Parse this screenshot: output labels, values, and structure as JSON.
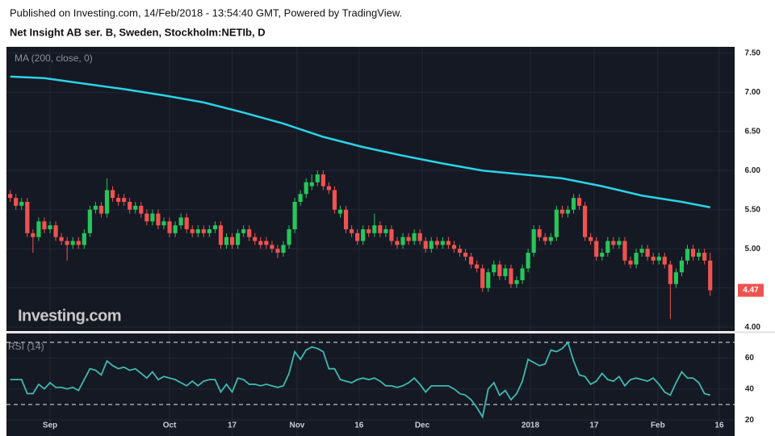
{
  "chart_data": {
    "type": "candlestick",
    "attribution": "Published on Investing.com, 14/Feb/2018 - 13:54:40 GMT, Powered by TradingView.",
    "title": "Net Insight AB ser. B, Sweden, Stockholm:NETIb, D",
    "watermark": "Investing.com",
    "up_color": "#26c65a",
    "down_color": "#ef5350",
    "grid": true,
    "open": [
      5.7,
      5.65,
      5.55,
      5.6,
      5.2,
      5.15,
      5.35,
      5.25,
      5.3,
      5.15,
      5.1,
      5.05,
      5.1,
      5.05,
      5.2,
      5.5,
      5.55,
      5.45,
      5.75,
      5.65,
      5.65,
      5.6,
      5.5,
      5.55,
      5.45,
      5.35,
      5.45,
      5.3,
      5.35,
      5.2,
      5.3,
      5.4,
      5.25,
      5.2,
      5.25,
      5.2,
      5.25,
      5.3,
      5.05,
      5.15,
      5.05,
      5.2,
      5.25,
      5.15,
      5.1,
      5.1,
      5.05,
      5.0,
      4.95,
      5.05,
      5.25,
      5.6,
      5.7,
      5.8,
      5.85,
      5.95,
      5.8,
      5.75,
      5.45,
      5.5,
      5.25,
      5.2,
      5.1,
      5.25,
      5.2,
      5.3,
      5.2,
      5.25,
      5.1,
      5.05,
      5.15,
      5.1,
      5.2,
      5.1,
      5.0,
      5.1,
      5.05,
      5.1,
      5.05,
      5.0,
      4.95,
      4.9,
      4.8,
      4.75,
      4.5,
      4.7,
      4.8,
      4.65,
      4.75,
      4.55,
      4.6,
      4.75,
      4.95,
      5.25,
      5.15,
      5.1,
      5.15,
      5.5,
      5.45,
      5.5,
      5.65,
      5.55,
      5.15,
      5.1,
      4.9,
      4.95,
      5.1,
      5.05,
      5.1,
      4.85,
      4.8,
      4.95,
      5.0,
      4.9,
      4.85,
      4.9,
      4.8,
      4.55,
      4.7,
      4.85,
      5.0,
      4.9,
      4.95,
      4.85
    ],
    "high": [
      5.75,
      5.7,
      5.65,
      5.65,
      5.25,
      5.4,
      5.4,
      5.35,
      5.35,
      5.2,
      5.15,
      5.15,
      5.15,
      5.25,
      5.55,
      5.6,
      5.6,
      5.9,
      5.8,
      5.7,
      5.7,
      5.65,
      5.6,
      5.6,
      5.5,
      5.5,
      5.5,
      5.4,
      5.4,
      5.35,
      5.45,
      5.45,
      5.3,
      5.3,
      5.3,
      5.3,
      5.35,
      5.35,
      5.2,
      5.2,
      5.25,
      5.3,
      5.3,
      5.2,
      5.15,
      5.15,
      5.1,
      5.05,
      5.1,
      5.3,
      5.65,
      5.75,
      5.9,
      5.95,
      6.0,
      6.0,
      5.85,
      5.8,
      5.55,
      5.55,
      5.3,
      5.25,
      5.3,
      5.3,
      5.45,
      5.35,
      5.3,
      5.3,
      5.15,
      5.2,
      5.2,
      5.25,
      5.25,
      5.15,
      5.15,
      5.15,
      5.15,
      5.15,
      5.1,
      5.05,
      5.0,
      4.95,
      4.85,
      4.8,
      4.75,
      4.85,
      4.85,
      4.8,
      4.8,
      4.65,
      4.8,
      5.0,
      5.3,
      5.3,
      5.2,
      5.2,
      5.55,
      5.55,
      5.55,
      5.7,
      5.7,
      5.6,
      5.2,
      5.15,
      5.0,
      5.15,
      5.15,
      5.15,
      5.15,
      4.9,
      5.0,
      5.05,
      5.05,
      4.95,
      4.95,
      4.95,
      4.85,
      4.75,
      4.9,
      5.05,
      5.05,
      5.0,
      5.0,
      4.95
    ],
    "low": [
      5.6,
      5.5,
      5.5,
      5.15,
      4.95,
      5.1,
      5.2,
      5.2,
      5.1,
      5.05,
      4.85,
      5.0,
      5.0,
      5.0,
      5.15,
      5.45,
      5.4,
      5.4,
      5.6,
      5.55,
      5.55,
      5.45,
      5.45,
      5.4,
      5.3,
      5.3,
      5.25,
      5.25,
      5.15,
      5.15,
      5.25,
      5.2,
      5.15,
      5.15,
      5.15,
      5.15,
      5.2,
      5.0,
      5.0,
      5.0,
      5.0,
      5.15,
      5.1,
      5.05,
      5.0,
      5.0,
      4.95,
      4.88,
      4.9,
      5.0,
      5.2,
      5.55,
      5.65,
      5.75,
      5.8,
      5.75,
      5.7,
      5.45,
      5.4,
      5.2,
      5.15,
      5.05,
      5.05,
      5.15,
      5.15,
      5.15,
      5.15,
      5.05,
      5.0,
      5.0,
      5.05,
      5.05,
      5.05,
      4.95,
      4.95,
      5.0,
      5.0,
      5.0,
      4.95,
      4.9,
      4.85,
      4.75,
      4.7,
      4.45,
      4.45,
      4.65,
      4.6,
      4.6,
      4.5,
      4.5,
      4.55,
      4.7,
      4.9,
      5.1,
      5.05,
      5.05,
      5.1,
      5.4,
      5.4,
      5.45,
      5.5,
      5.1,
      5.05,
      4.85,
      4.85,
      4.9,
      5.0,
      5.0,
      4.8,
      4.75,
      4.75,
      4.9,
      4.85,
      4.8,
      4.8,
      4.75,
      4.1,
      4.5,
      4.65,
      4.8,
      4.85,
      4.85,
      4.8,
      4.4
    ],
    "close": [
      5.65,
      5.55,
      5.6,
      5.2,
      5.15,
      5.35,
      5.25,
      5.3,
      5.15,
      5.1,
      5.05,
      5.1,
      5.05,
      5.2,
      5.5,
      5.55,
      5.45,
      5.75,
      5.65,
      5.6,
      5.6,
      5.5,
      5.55,
      5.45,
      5.35,
      5.45,
      5.3,
      5.35,
      5.2,
      5.3,
      5.4,
      5.25,
      5.2,
      5.25,
      5.2,
      5.25,
      5.3,
      5.05,
      5.15,
      5.05,
      5.2,
      5.25,
      5.15,
      5.1,
      5.05,
      5.05,
      5.0,
      4.95,
      5.05,
      5.25,
      5.6,
      5.7,
      5.85,
      5.85,
      5.95,
      5.8,
      5.75,
      5.5,
      5.5,
      5.25,
      5.2,
      5.1,
      5.25,
      5.2,
      5.3,
      5.2,
      5.25,
      5.1,
      5.05,
      5.15,
      5.1,
      5.2,
      5.1,
      5.0,
      5.1,
      5.05,
      5.1,
      5.05,
      5.0,
      4.95,
      4.9,
      4.8,
      4.75,
      4.5,
      4.7,
      4.8,
      4.65,
      4.75,
      4.55,
      4.6,
      4.75,
      4.95,
      5.25,
      5.15,
      5.1,
      5.15,
      5.5,
      5.45,
      5.5,
      5.65,
      5.55,
      5.15,
      5.1,
      4.9,
      4.95,
      5.1,
      5.05,
      5.1,
      4.85,
      4.8,
      4.95,
      5.0,
      4.9,
      4.85,
      4.9,
      4.8,
      4.55,
      4.7,
      4.85,
      5.0,
      4.9,
      4.95,
      4.85,
      4.47
    ],
    "ma": {
      "name": "MA (200, close, 0)",
      "color": "#2ad4e6",
      "x": [
        0,
        6,
        13,
        20,
        27,
        34,
        41,
        48,
        55,
        62,
        69,
        76,
        83,
        90,
        97,
        104,
        111,
        118,
        123
      ],
      "values": [
        7.2,
        7.18,
        7.11,
        7.04,
        6.96,
        6.87,
        6.74,
        6.6,
        6.43,
        6.3,
        6.19,
        6.09,
        6.0,
        5.95,
        5.9,
        5.8,
        5.68,
        5.6,
        5.53
      ]
    },
    "ylim": [
      3.95,
      7.58
    ],
    "yticks": [
      {
        "value": 7.5,
        "label": "7.50"
      },
      {
        "value": 7.0,
        "label": "7.00"
      },
      {
        "value": 6.5,
        "label": "6.50"
      },
      {
        "value": 6.0,
        "label": "6.00"
      },
      {
        "value": 5.5,
        "label": "5.50"
      },
      {
        "value": 5.0,
        "label": "5.00"
      },
      {
        "value": 4.5,
        "label": "4.50"
      },
      {
        "value": 4.0,
        "label": "4.00"
      }
    ],
    "xlim": [
      -0.66,
      127.3
    ],
    "xticks": [
      {
        "value": 7,
        "label": "Sep"
      },
      {
        "value": 28,
        "label": "Oct"
      },
      {
        "value": 39,
        "label": "17"
      },
      {
        "value": 50.4,
        "label": "Nov"
      },
      {
        "value": 61.3,
        "label": "16"
      },
      {
        "value": 72.4,
        "label": "Dec"
      },
      {
        "value": 91.4,
        "label": "2018"
      },
      {
        "value": 102.6,
        "label": "17"
      },
      {
        "value": 113.8,
        "label": "Feb"
      },
      {
        "value": 124.6,
        "label": "16"
      }
    ],
    "rsi": {
      "name": "RSI (14)",
      "color": "#3fb8b0",
      "values": [
        46,
        46,
        46,
        37,
        37,
        43,
        40,
        44,
        41,
        41,
        40,
        41,
        39,
        46,
        53,
        52,
        49,
        58,
        55,
        53,
        54,
        52,
        53,
        50,
        47,
        51,
        46,
        48,
        47,
        46,
        44,
        42,
        45,
        42,
        45,
        46,
        46,
        38,
        43,
        38,
        47,
        46,
        43,
        43,
        42,
        43,
        42,
        41,
        42,
        50,
        64,
        59,
        65,
        67,
        66,
        64,
        53,
        53,
        46,
        45,
        44,
        46,
        47,
        46,
        47,
        45,
        42,
        42,
        41,
        42,
        44,
        47,
        43,
        38,
        42,
        42,
        42,
        42,
        40,
        37,
        36,
        33,
        28,
        22,
        40,
        44,
        36,
        39,
        33,
        37,
        45,
        59,
        57,
        55,
        56,
        65,
        64,
        66,
        70,
        58,
        49,
        48,
        43,
        45,
        50,
        46,
        45,
        48,
        42,
        46,
        47,
        46,
        45,
        47,
        43,
        38,
        36,
        44,
        51,
        47,
        47,
        44,
        37,
        36
      ],
      "ylim": [
        9.7,
        75.7
      ],
      "yticks": [
        60,
        40,
        20
      ],
      "bands": [
        70,
        30
      ]
    }
  }
}
